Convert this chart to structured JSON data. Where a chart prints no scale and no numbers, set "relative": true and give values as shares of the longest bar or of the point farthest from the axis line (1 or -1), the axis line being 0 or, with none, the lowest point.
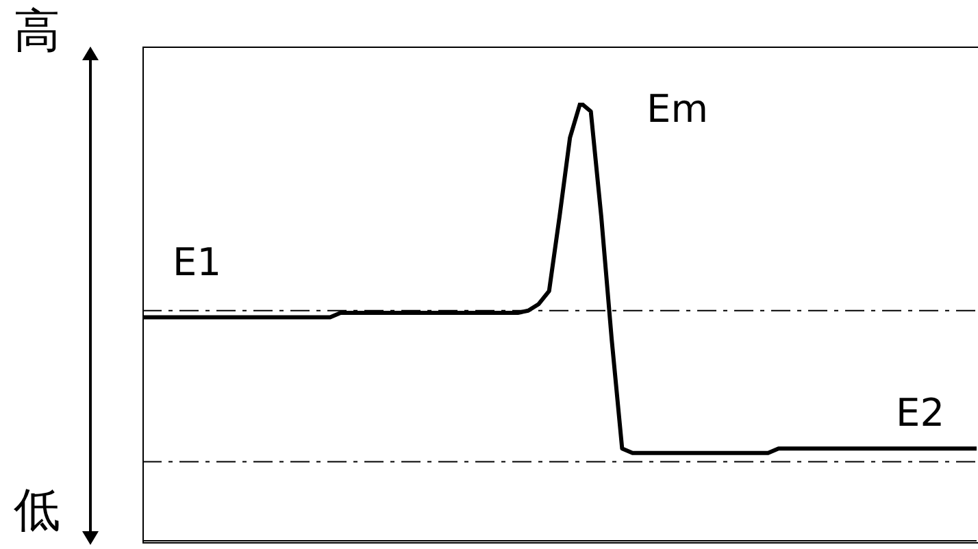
{
  "chart_data": {
    "type": "line",
    "relative": true,
    "color": "#000000",
    "marker": "none",
    "line_style": "solid",
    "grid": false,
    "legend": false,
    "categories": [
      null,
      null,
      null,
      null,
      null,
      null,
      null,
      null,
      null,
      null,
      null,
      null,
      null,
      null,
      null,
      null,
      null,
      null,
      null,
      null,
      null,
      null,
      null,
      null,
      null,
      null,
      null,
      null,
      null,
      null,
      null,
      null,
      null,
      null,
      null,
      null,
      null,
      null,
      null,
      null,
      null,
      null,
      null,
      null,
      null,
      null,
      null,
      null,
      null,
      null,
      null,
      null,
      null,
      null,
      null,
      null,
      null,
      null,
      null,
      null,
      null,
      null,
      null,
      null,
      null,
      null,
      null,
      null,
      null,
      null,
      null,
      null,
      null,
      null,
      null,
      null,
      null,
      null,
      null,
      null,
      null
    ],
    "values": [
      0.51,
      0.51,
      0.51,
      0.51,
      0.51,
      0.51,
      0.51,
      0.51,
      0.51,
      0.51,
      0.51,
      0.51,
      0.51,
      0.51,
      0.51,
      0.51,
      0.51,
      0.51,
      0.51,
      0.52,
      0.52,
      0.52,
      0.52,
      0.52,
      0.52,
      0.52,
      0.52,
      0.52,
      0.52,
      0.52,
      0.52,
      0.52,
      0.52,
      0.52,
      0.52,
      0.52,
      0.52,
      0.525,
      0.54,
      0.57,
      0.74,
      0.92,
      1,
      0.98,
      0.74,
      0.46,
      0.21,
      0.2,
      0.2,
      0.2,
      0.2,
      0.2,
      0.2,
      0.2,
      0.2,
      0.2,
      0.2,
      0.2,
      0.2,
      0.2,
      0.2,
      0.21,
      0.21,
      0.21,
      0.21,
      0.21,
      0.21,
      0.21,
      0.21,
      0.21,
      0.21,
      0.21,
      0.21,
      0.21,
      0.21,
      0.21,
      0.21,
      0.21,
      0.21,
      0.21,
      0.21
    ],
    "ref_lines": [
      {
        "axis": "y",
        "value": 0.525,
        "color": "#000000",
        "line_style": "dashed"
      },
      {
        "axis": "y",
        "value": 0.18,
        "color": "#000000",
        "line_style": "dashed"
      }
    ],
    "annotations": [
      "高",
      "低",
      "E1",
      "Em",
      "E2"
    ]
  }
}
